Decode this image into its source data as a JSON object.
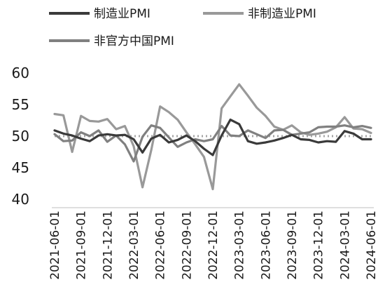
{
  "chart_data": {
    "type": "line",
    "x": [
      "2021-06-01",
      "2021-07-01",
      "2021-08-01",
      "2021-09-01",
      "2021-10-01",
      "2021-11-01",
      "2021-12-01",
      "2022-01-01",
      "2022-02-01",
      "2022-03-01",
      "2022-04-01",
      "2022-05-01",
      "2022-06-01",
      "2022-07-01",
      "2022-08-01",
      "2022-09-01",
      "2022-10-01",
      "2022-11-01",
      "2022-12-01",
      "2023-01-01",
      "2023-02-01",
      "2023-03-01",
      "2023-04-01",
      "2023-05-01",
      "2023-06-01",
      "2023-07-01",
      "2023-08-01",
      "2023-09-01",
      "2023-10-01",
      "2023-11-01",
      "2023-12-01",
      "2024-01-01",
      "2024-02-01",
      "2024-03-01",
      "2024-04-01",
      "2024-05-01",
      "2024-06-01"
    ],
    "x_ticks": [
      "2021-06-01",
      "2021-09-01",
      "2021-12-01",
      "2022-03-01",
      "2022-06-01",
      "2022-09-01",
      "2022-12-01",
      "2023-03-01",
      "2023-06-01",
      "2023-09-01",
      "2023-12-01",
      "2024-03-01",
      "2024-06-01"
    ],
    "y_ticks": [
      "40",
      "45",
      "50",
      "55",
      "60"
    ],
    "ylim": [
      40,
      60
    ],
    "reference_line": 50,
    "series": [
      {
        "name": "制造业PMI",
        "color": "#3a3a3a",
        "values": [
          50.9,
          50.4,
          50.1,
          49.6,
          49.2,
          50.1,
          50.3,
          50.1,
          50.2,
          49.5,
          47.4,
          49.6,
          50.2,
          49.0,
          49.4,
          50.1,
          49.2,
          48.0,
          47.0,
          50.1,
          52.6,
          51.9,
          49.2,
          48.8,
          49.0,
          49.3,
          49.7,
          50.2,
          49.5,
          49.4,
          49.0,
          49.2,
          49.1,
          50.8,
          50.4,
          49.5,
          49.5
        ]
      },
      {
        "name": "非制造业PMI",
        "color": "#999999",
        "values": [
          53.5,
          53.3,
          47.5,
          53.2,
          52.4,
          52.3,
          52.7,
          51.1,
          51.6,
          48.4,
          41.9,
          47.8,
          54.7,
          53.8,
          52.6,
          50.6,
          48.7,
          46.7,
          41.6,
          54.4,
          56.3,
          58.2,
          56.4,
          54.5,
          53.2,
          51.5,
          51.0,
          51.7,
          50.6,
          50.2,
          50.4,
          50.7,
          51.4,
          53.0,
          51.2,
          51.1,
          50.5
        ]
      },
      {
        "name": "非官方中国PMI",
        "color": "#808080",
        "values": [
          50.3,
          49.2,
          49.3,
          50.6,
          50.0,
          50.9,
          49.1,
          50.1,
          48.7,
          46.0,
          49.9,
          51.7,
          51.3,
          49.8,
          48.3,
          49.0,
          49.5,
          49.2,
          49.5,
          51.6,
          50.1,
          50.0,
          50.9,
          50.3,
          49.7,
          50.9,
          51.0,
          50.2,
          50.4,
          50.6,
          51.4,
          51.5,
          51.5,
          51.7,
          51.4,
          51.6,
          51.3
        ]
      }
    ]
  }
}
